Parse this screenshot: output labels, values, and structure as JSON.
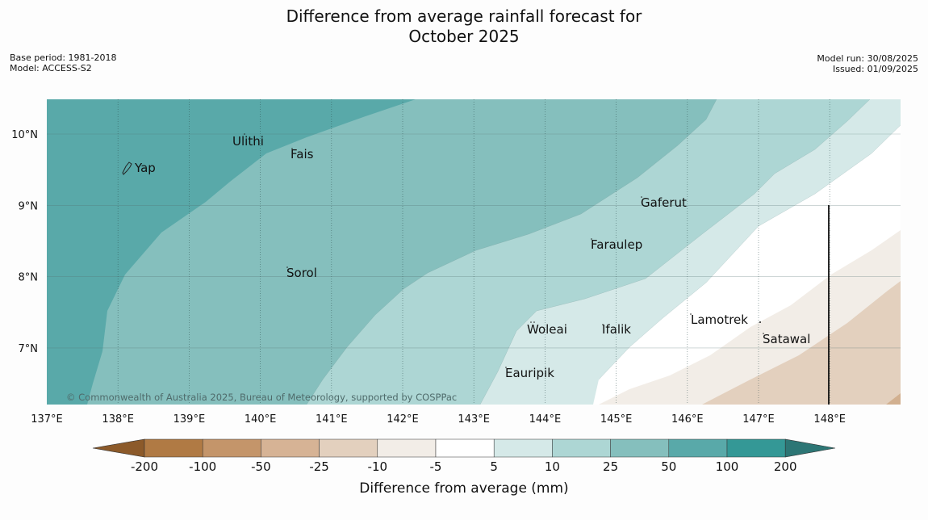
{
  "title_line1": "Difference from average rainfall forecast for",
  "title_line2": "October 2025",
  "base_period": "Base period: 1981-2018",
  "model": "Model: ACCESS-S2",
  "model_run": "Model run: 30/08/2025",
  "issued": "Issued: 01/09/2025",
  "copyright": "© Commonwealth of Australia 2025, Bureau of Meteorology, supported by COSPPac",
  "lon_ticks": [
    "137°E",
    "138°E",
    "139°E",
    "140°E",
    "141°E",
    "142°E",
    "143°E",
    "144°E",
    "145°E",
    "146°E",
    "147°E",
    "148°E"
  ],
  "lat_ticks": [
    "10°N",
    "9°N",
    "8°N",
    "7°N"
  ],
  "places": {
    "yap": "Yap",
    "ulithi": "Ulithi",
    "fais": "Fais",
    "gaferut": "Gaferut",
    "faraulep": "Faraulep",
    "sorol": "Sorol",
    "lamotrek": "Lamotrek",
    "woleai": "Woleai",
    "ifalik": "Ifalik",
    "satawal": "Satawal",
    "eauripik": "Eauripik"
  },
  "colorbar": {
    "label": "Difference from average (mm)",
    "ticks": [
      "-200",
      "-100",
      "-50",
      "-25",
      "-10",
      "-5",
      "5",
      "10",
      "25",
      "50",
      "100",
      "200"
    ],
    "colors": {
      "below_min": "#8c5a2a",
      "n200_n100": "#b07a44",
      "n100_n50": "#c4956a",
      "n50_n25": "#d6b395",
      "n25_n10": "#e3d0be",
      "n10_n5": "#f2ede7",
      "n5_p5": "#ffffff",
      "p5_p10": "#d5e9e8",
      "p10_p25": "#add6d4",
      "p25_p50": "#85bfbd",
      "p50_p100": "#59a9a9",
      "p100_p200": "#349896",
      "above_max": "#2d7675"
    }
  }
}
